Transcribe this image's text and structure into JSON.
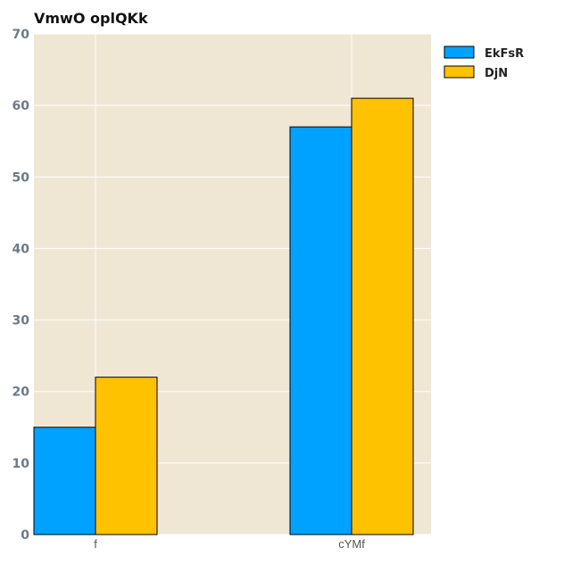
{
  "chart_data": {
    "type": "bar",
    "title": "VmwO oplQKk",
    "xlabel": "",
    "ylabel": "",
    "categories": [
      "f",
      "cYMf"
    ],
    "series": [
      {
        "name": "EkFsR",
        "values": [
          15,
          57
        ],
        "color": "#00a2ff"
      },
      {
        "name": "DjN",
        "values": [
          22,
          61
        ],
        "color": "#ffc200"
      }
    ],
    "ylim": [
      0,
      70
    ],
    "yticks": [
      0,
      10,
      20,
      30,
      40,
      50,
      60,
      70
    ],
    "grid": true,
    "legend_position": "top-right",
    "plot_background": "#efe6d4"
  }
}
